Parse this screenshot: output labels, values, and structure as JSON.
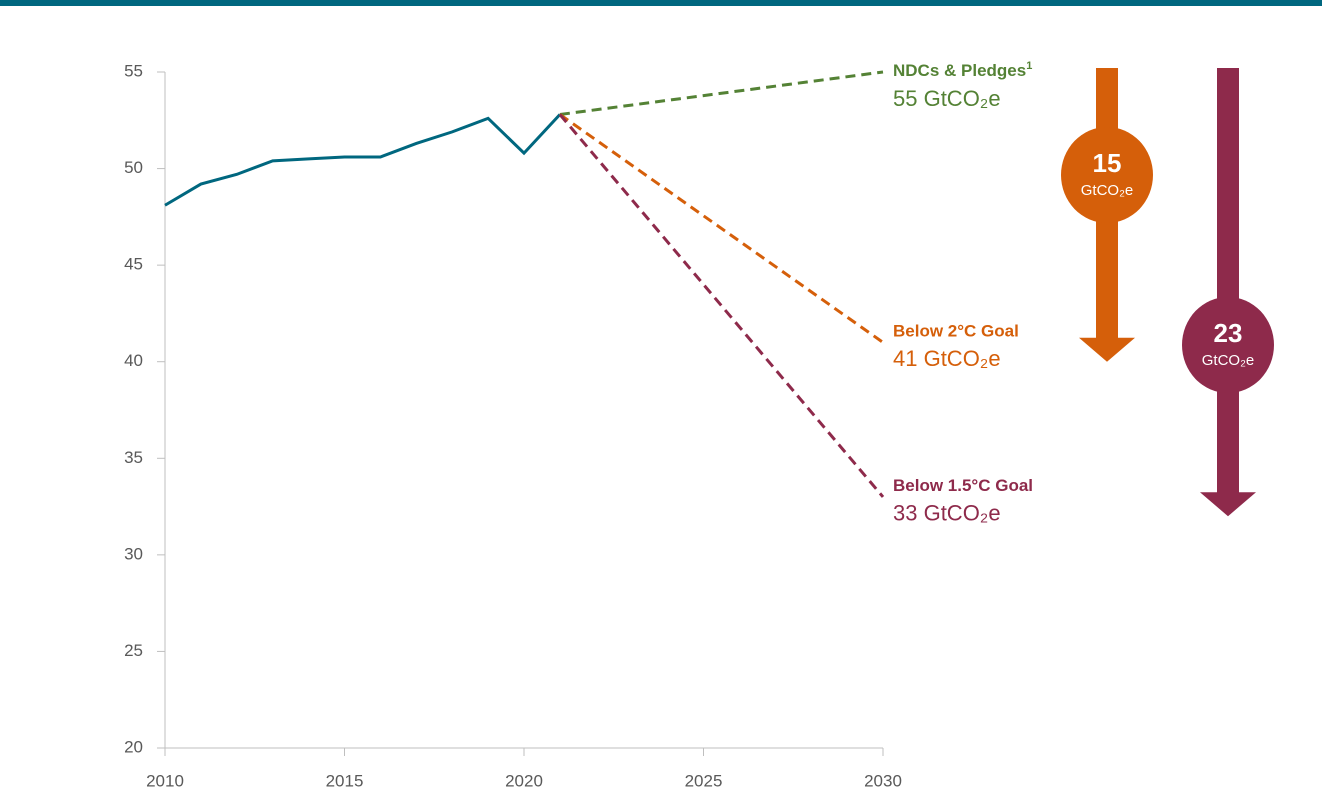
{
  "chart_data": {
    "type": "line",
    "xlim": [
      2010,
      2030
    ],
    "xticks": [
      2010,
      2015,
      2020,
      2025,
      2030
    ],
    "ylim": [
      20,
      55
    ],
    "yticks": [
      20,
      25,
      30,
      35,
      40,
      45,
      50,
      55
    ],
    "series": [
      {
        "color": "#00677f",
        "dashed": false,
        "x": [
          2010,
          2011,
          2012,
          2013,
          2014,
          2015,
          2016,
          2017,
          2018,
          2019,
          2020,
          2021
        ],
        "values": [
          48.1,
          49.2,
          49.7,
          50.4,
          50.5,
          50.6,
          50.6,
          51.3,
          51.9,
          52.6,
          50.8,
          52.8
        ]
      },
      {
        "name": "NDCs & Pledges",
        "footnote": "1",
        "color": "#548235",
        "dashed": true,
        "x": [
          2021,
          2030
        ],
        "values": [
          52.8,
          55
        ],
        "value_labels": [
          null,
          "55 GtCO₂e"
        ]
      },
      {
        "name": "Below 2°C Goal",
        "color": "#d55f0a",
        "dashed": true,
        "x": [
          2021,
          2030
        ],
        "values": [
          52.8,
          41
        ],
        "value_labels": [
          null,
          "41 GtCO₂e"
        ]
      },
      {
        "name": "Below 1.5°C Goal",
        "color": "#8e2a4b",
        "dashed": true,
        "x": [
          2021,
          2030
        ],
        "values": [
          52.8,
          33
        ],
        "value_labels": [
          null,
          "33 GtCO₂e"
        ]
      }
    ],
    "gaps": [
      {
        "value": 15,
        "label": "GtCO₂e",
        "color": "#d55f0a"
      },
      {
        "value": 23,
        "label": "GtCO₂e",
        "color": "#8e2a4b"
      }
    ]
  }
}
